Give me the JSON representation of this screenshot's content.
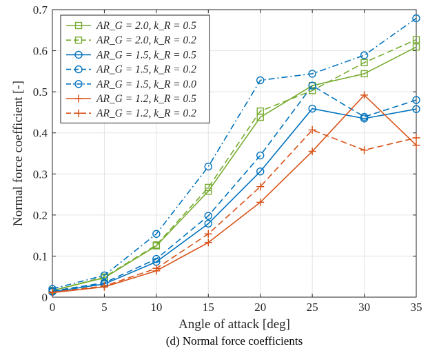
{
  "chart_data": {
    "type": "line",
    "title": "",
    "caption": "(d) Normal force coefficients",
    "xlabel": "Angle of attack [deg]",
    "ylabel": "Normal force coefficient [-]",
    "xlim": [
      0,
      35
    ],
    "ylim": [
      0,
      0.7
    ],
    "xticks": [
      "0",
      "5",
      "10",
      "15",
      "20",
      "25",
      "30",
      "35"
    ],
    "yticks": [
      "0",
      "0.1",
      "0.2",
      "0.3",
      "0.4",
      "0.5",
      "0.6",
      "0.7"
    ],
    "grid": true,
    "legend_position": "top-left",
    "x": [
      0,
      5,
      10,
      15,
      20,
      25,
      30,
      35
    ],
    "series": [
      {
        "name": "AR_G = 2.0, k_R = 0.5",
        "label": "AR_G = 2.0, k_R = 0.5",
        "color": "#77AC30",
        "linestyle": "solid",
        "marker": "square",
        "values": [
          0.016,
          0.047,
          0.125,
          0.258,
          0.438,
          0.515,
          0.544,
          0.609
        ]
      },
      {
        "name": "AR_G = 2.0, k_R = 0.2",
        "label": "AR_G = 2.0, k_R = 0.2",
        "color": "#77AC30",
        "linestyle": "dashed",
        "marker": "square",
        "values": [
          0.016,
          0.049,
          0.127,
          0.267,
          0.453,
          0.503,
          0.571,
          0.627
        ]
      },
      {
        "name": "AR_G = 1.5, k_R = 0.5",
        "label": "AR_G = 1.5, k_R = 0.5",
        "color": "#0072BD",
        "linestyle": "solid",
        "marker": "circle",
        "values": [
          0.013,
          0.032,
          0.086,
          0.179,
          0.306,
          0.459,
          0.435,
          0.458
        ]
      },
      {
        "name": "AR_G = 1.5, k_R = 0.2",
        "label": "AR_G = 1.5, k_R = 0.2",
        "color": "#0072BD",
        "linestyle": "dashed",
        "marker": "circle",
        "values": [
          0.015,
          0.035,
          0.093,
          0.198,
          0.345,
          0.515,
          0.439,
          0.48
        ]
      },
      {
        "name": "AR_G = 1.5, k_R = 0.0",
        "label": "AR_G = 1.5, k_R = 0.0",
        "color": "#0072BD",
        "linestyle": "dashdot",
        "marker": "circle",
        "values": [
          0.02,
          0.053,
          0.154,
          0.318,
          0.528,
          0.544,
          0.589,
          0.679
        ]
      },
      {
        "name": "AR_G = 1.2, k_R = 0.5",
        "label": "AR_G = 1.2, k_R = 0.5",
        "color": "#D95319",
        "linestyle": "solid",
        "marker": "plus",
        "values": [
          0.011,
          0.025,
          0.064,
          0.133,
          0.231,
          0.355,
          0.492,
          0.37
        ]
      },
      {
        "name": "AR_G = 1.2, k_R = 0.2",
        "label": "AR_G = 1.2, k_R = 0.2",
        "color": "#D95319",
        "linestyle": "dashed",
        "marker": "plus",
        "values": [
          0.012,
          0.027,
          0.07,
          0.154,
          0.269,
          0.407,
          0.358,
          0.388
        ]
      }
    ]
  }
}
